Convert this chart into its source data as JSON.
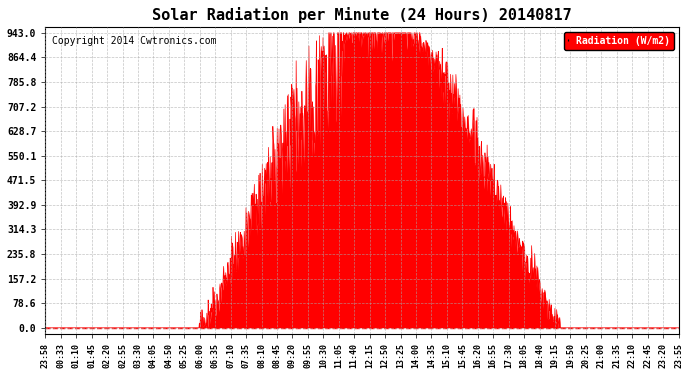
{
  "title": "Solar Radiation per Minute (24 Hours) 20140817",
  "copyright": "Copyright 2014 Cwtronics.com",
  "legend_label": "Radiation (W/m2)",
  "background_color": "#ffffff",
  "plot_bg_color": "#ffffff",
  "fill_color": "#ff0000",
  "line_color": "#ff0000",
  "grid_color": "#aaaaaa",
  "dashed_line_color": "#ff0000",
  "y_tick_values": [
    0.0,
    78.6,
    157.2,
    235.8,
    314.3,
    392.9,
    471.5,
    550.1,
    628.7,
    707.2,
    785.8,
    864.4,
    943.0
  ],
  "y_max": 943.0,
  "x_tick_labels": [
    "23:58",
    "00:33",
    "01:10",
    "01:45",
    "02:20",
    "02:55",
    "03:30",
    "04:05",
    "04:50",
    "05:25",
    "06:00",
    "06:35",
    "07:10",
    "07:35",
    "08:10",
    "08:45",
    "09:20",
    "09:55",
    "10:30",
    "11:05",
    "11:40",
    "12:15",
    "12:50",
    "13:25",
    "14:00",
    "14:35",
    "15:10",
    "15:45",
    "16:20",
    "16:55",
    "17:30",
    "18:05",
    "18:40",
    "19:15",
    "19:50",
    "20:25",
    "21:00",
    "21:35",
    "22:10",
    "22:45",
    "23:20",
    "23:55"
  ],
  "num_points": 1440
}
